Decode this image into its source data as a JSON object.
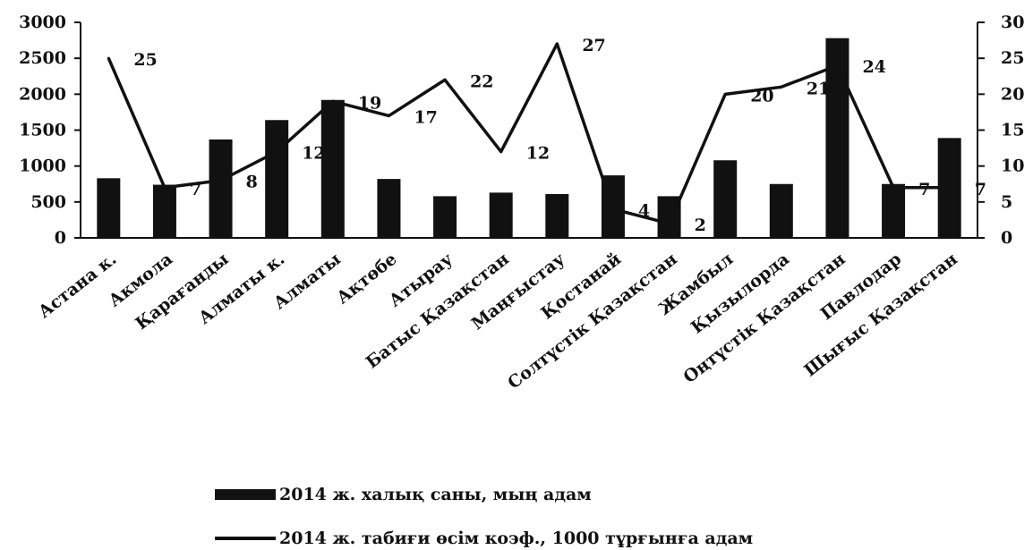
{
  "chart_data": {
    "type": "bar+line",
    "categories": [
      "Астана к.",
      "Акмола",
      "Қарағанды",
      "Алматы к.",
      "Алматы",
      "Ақтөбе",
      "Атырау",
      "Батыс Қазақстан",
      "Маңғыстау",
      "Қостанай",
      "Солтүстік Қазақстан",
      "Жамбыл",
      "Қызылорда",
      "Оңтүстік Қазақстан",
      "Павлодар",
      "Шығыс Қазақстан"
    ],
    "series": [
      {
        "name": "2014 ж. халық саны, мың адам",
        "type": "bar",
        "axis": "left",
        "values": [
          830,
          740,
          1370,
          1640,
          1920,
          820,
          580,
          630,
          610,
          870,
          580,
          1080,
          750,
          2780,
          750,
          1390
        ]
      },
      {
        "name": "2014 ж. табиғи өсім коэф., 1000 тұрғынға адам",
        "type": "line",
        "axis": "right",
        "values": [
          25,
          7,
          8,
          12,
          19,
          17,
          22,
          12,
          27,
          4,
          2,
          20,
          21,
          24,
          7,
          7
        ]
      }
    ],
    "ylim_left": [
      0,
      3000
    ],
    "ylim_right": [
      0,
      30
    ],
    "yticks_left": [
      "0",
      "500",
      "1000",
      "1500",
      "2000",
      "2500",
      "3000"
    ],
    "yticks_right": [
      "0",
      "5",
      "10",
      "15",
      "20",
      "25",
      "30"
    ],
    "line_labels": [
      "25",
      "7",
      "8",
      "12",
      "19",
      "17",
      "22",
      "12",
      "27",
      "4",
      "2",
      "20",
      "21",
      "24",
      "7",
      "7"
    ],
    "legend_position": "bottom",
    "grid": false,
    "colors": {
      "bar": "#111111",
      "line": "#111111"
    }
  }
}
